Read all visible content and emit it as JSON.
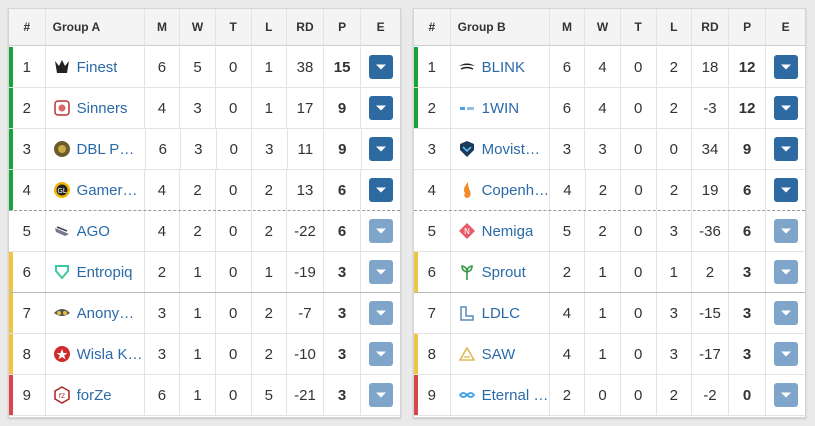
{
  "headers": {
    "num": "#",
    "m": "M",
    "w": "W",
    "t": "T",
    "l": "L",
    "rd": "RD",
    "p": "P",
    "e": "E"
  },
  "groups": [
    {
      "name": "Group A",
      "rows": [
        {
          "pos": "1",
          "team": "Finest",
          "m": "6",
          "w": "5",
          "t": "0",
          "l": "1",
          "rd": "38",
          "p": "15",
          "status": "qualified",
          "logo": "finest-logo"
        },
        {
          "pos": "2",
          "team": "Sinners",
          "m": "4",
          "w": "3",
          "t": "0",
          "l": "1",
          "rd": "17",
          "p": "9",
          "status": "qualified",
          "logo": "sinners-logo"
        },
        {
          "pos": "3",
          "team": "DBL PO…",
          "m": "6",
          "w": "3",
          "t": "0",
          "l": "3",
          "rd": "11",
          "p": "9",
          "status": "qualified",
          "logo": "dbl-poney-logo"
        },
        {
          "pos": "4",
          "team": "Gamer…",
          "m": "4",
          "w": "2",
          "t": "0",
          "l": "2",
          "rd": "13",
          "p": "6",
          "status": "qualified",
          "logo": "gamerlegion-logo"
        },
        {
          "pos": "5",
          "team": "AGO",
          "m": "4",
          "w": "2",
          "t": "0",
          "l": "2",
          "rd": "-22",
          "p": "6",
          "status": "none",
          "logo": "ago-logo"
        },
        {
          "pos": "6",
          "team": "Entropiq",
          "m": "2",
          "w": "1",
          "t": "0",
          "l": "1",
          "rd": "-19",
          "p": "3",
          "status": "middle",
          "logo": "entropiq-logo"
        },
        {
          "pos": "7",
          "team": "Anony…",
          "m": "3",
          "w": "1",
          "t": "0",
          "l": "2",
          "rd": "-7",
          "p": "3",
          "status": "middle",
          "logo": "anonymo-logo"
        },
        {
          "pos": "8",
          "team": "Wisla K…",
          "m": "3",
          "w": "1",
          "t": "0",
          "l": "2",
          "rd": "-10",
          "p": "3",
          "status": "middle",
          "logo": "wisla-logo"
        },
        {
          "pos": "9",
          "team": "forZe",
          "m": "6",
          "w": "1",
          "t": "0",
          "l": "5",
          "rd": "-21",
          "p": "3",
          "status": "eliminated",
          "logo": "forze-logo"
        }
      ]
    },
    {
      "name": "Group B",
      "rows": [
        {
          "pos": "1",
          "team": "BLINK",
          "m": "6",
          "w": "4",
          "t": "0",
          "l": "2",
          "rd": "18",
          "p": "12",
          "status": "qualified",
          "logo": "blink-logo"
        },
        {
          "pos": "2",
          "team": "1WIN",
          "m": "6",
          "w": "4",
          "t": "0",
          "l": "2",
          "rd": "-3",
          "p": "12",
          "status": "qualified",
          "logo": "1win-logo"
        },
        {
          "pos": "3",
          "team": "Movist…",
          "m": "3",
          "w": "3",
          "t": "0",
          "l": "0",
          "rd": "34",
          "p": "9",
          "status": "none",
          "logo": "movistar-logo"
        },
        {
          "pos": "4",
          "team": "Copenh…",
          "m": "4",
          "w": "2",
          "t": "0",
          "l": "2",
          "rd": "19",
          "p": "6",
          "status": "none",
          "logo": "copenhagen-logo"
        },
        {
          "pos": "5",
          "team": "Nemiga",
          "m": "5",
          "w": "2",
          "t": "0",
          "l": "3",
          "rd": "-36",
          "p": "6",
          "status": "none",
          "logo": "nemiga-logo"
        },
        {
          "pos": "6",
          "team": "Sprout",
          "m": "2",
          "w": "1",
          "t": "0",
          "l": "1",
          "rd": "2",
          "p": "3",
          "status": "middle",
          "logo": "sprout-logo"
        },
        {
          "pos": "7",
          "team": "LDLC",
          "m": "4",
          "w": "1",
          "t": "0",
          "l": "3",
          "rd": "-15",
          "p": "3",
          "status": "none",
          "logo": "ldlc-logo"
        },
        {
          "pos": "8",
          "team": "SAW",
          "m": "4",
          "w": "1",
          "t": "0",
          "l": "3",
          "rd": "-17",
          "p": "3",
          "status": "middle",
          "logo": "saw-logo"
        },
        {
          "pos": "9",
          "team": "Eternal …",
          "m": "2",
          "w": "0",
          "t": "0",
          "l": "2",
          "rd": "-2",
          "p": "0",
          "status": "eliminated",
          "logo": "eternal-fire-logo"
        }
      ]
    }
  ],
  "colors": {
    "qualified": "#1aa33a",
    "middle": "#f0c542",
    "eliminated": "#d9454b",
    "button": "#2d6aa1",
    "button_light": "#7fa6ca",
    "link": "#2a6aa8"
  }
}
